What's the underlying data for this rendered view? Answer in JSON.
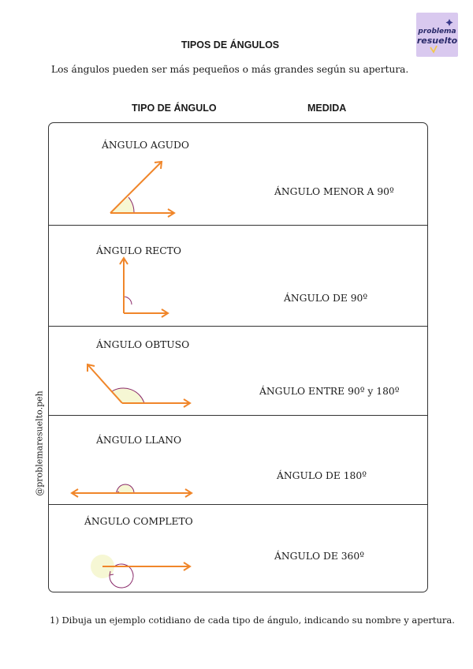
{
  "logo": {
    "line1": "problema",
    "line2": "resuelto"
  },
  "title": "TIPOS DE ÁNGULOS",
  "intro": "Los ángulos pueden ser más pequeños o más grandes según su apertura.",
  "columns": {
    "type": "TIPO DE ÁNGULO",
    "measure": "MEDIDA"
  },
  "rows": [
    {
      "name": "ÁNGULO AGUDO",
      "measure": "ÁNGULO MENOR A 90º"
    },
    {
      "name": "ÁNGULO RECTO",
      "measure": "ÁNGULO DE 90º"
    },
    {
      "name": "ÁNGULO OBTUSO",
      "measure": "ÁNGULO ENTRE 90º y 180º"
    },
    {
      "name": "ÁNGULO LLANO",
      "measure": "ÁNGULO DE 180º"
    },
    {
      "name": "ÁNGULO  COMPLETO",
      "measure": "ÁNGULO DE 360º"
    }
  ],
  "side_text": "@problemaresuelto.peh",
  "question": "1) Dibuja un ejemplo cotidiano de cada tipo de ángulo, indicando su nombre y apertura.",
  "colors": {
    "ray": "#f0862a",
    "arc_fill": "#f6f7d4",
    "arc_stroke": "#8a2a6a",
    "logo_bg": "#d9c9ef"
  }
}
